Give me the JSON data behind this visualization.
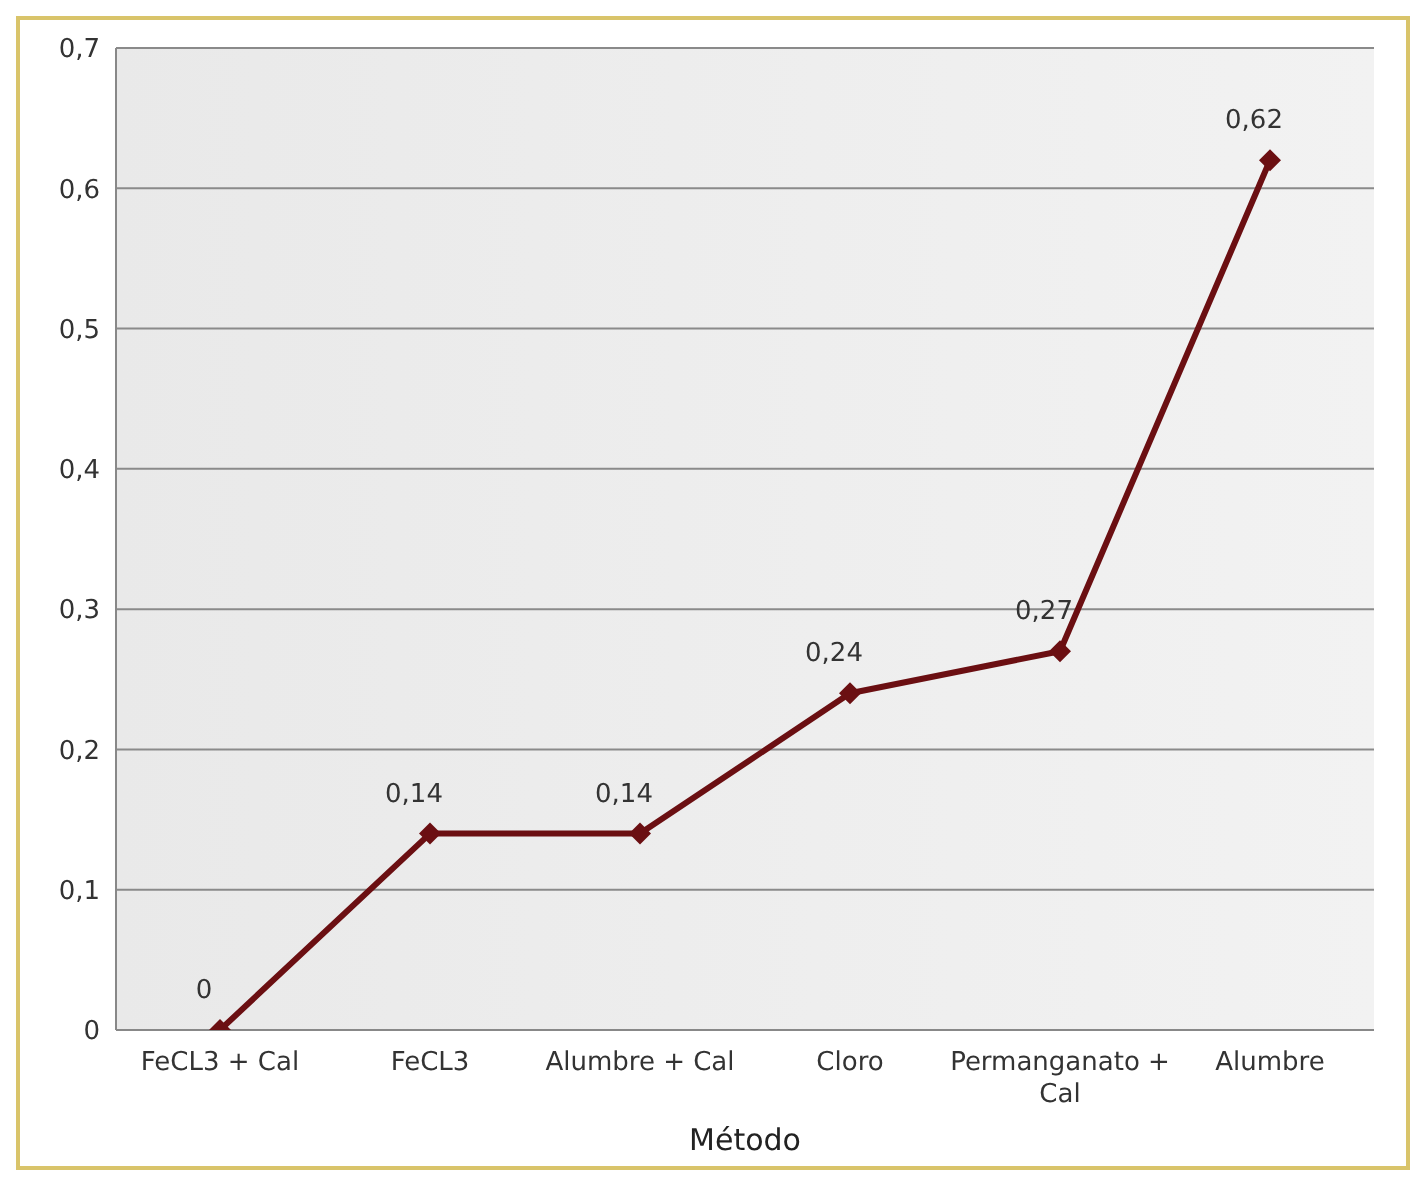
{
  "chart_data": {
    "type": "line",
    "xlabel": "Método",
    "categories": [
      "FeCL3 + Cal",
      "FeCL3",
      "Alumbre + Cal",
      "Cloro",
      "Permanganato + Cal",
      "Alumbre"
    ],
    "series": [
      {
        "color": "#6b0f12",
        "values": [
          0,
          0.14,
          0.14,
          0.24,
          0.27,
          0.62
        ],
        "value_labels": [
          "0",
          "0,14",
          "0,14",
          "0,24",
          "0,27",
          "0,62"
        ]
      }
    ],
    "ylim": [
      0,
      0.7
    ],
    "yticks": [
      {
        "value": 0,
        "label": "0"
      },
      {
        "value": 0.1,
        "label": "0,1"
      },
      {
        "value": 0.2,
        "label": "0,2"
      },
      {
        "value": 0.3,
        "label": "0,3"
      },
      {
        "value": 0.4,
        "label": "0,4"
      },
      {
        "value": 0.5,
        "label": "0,5"
      },
      {
        "value": 0.6,
        "label": "0,6"
      },
      {
        "value": 0.7,
        "label": "0,7"
      }
    ],
    "grid": "y",
    "legend": false,
    "marker": "diamond",
    "line_style": "solid"
  }
}
